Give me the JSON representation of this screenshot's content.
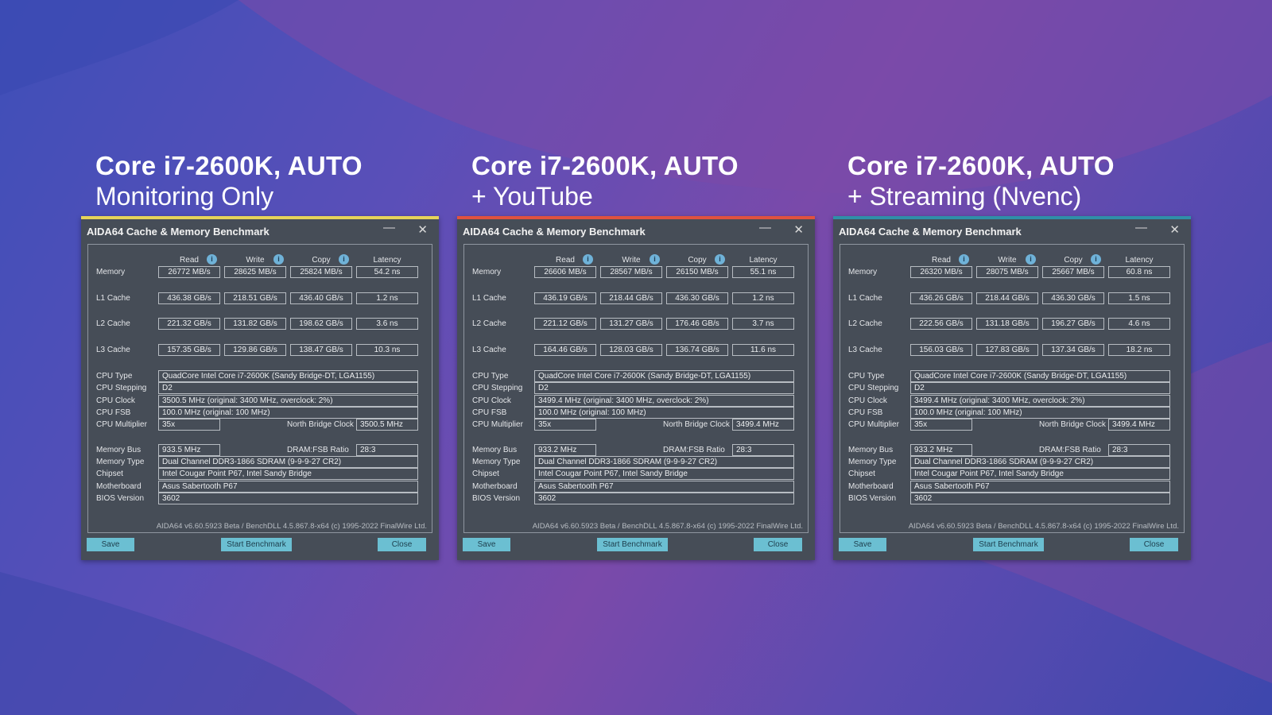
{
  "colors": {
    "accent_1": "#e6d35a",
    "accent_2": "#e0523f",
    "accent_3": "#2f8fa8"
  },
  "panels": [
    {
      "heading": "Core i7-2600K, AUTO",
      "subheading": "Monitoring Only",
      "window_title": "AIDA64 Cache & Memory Benchmark",
      "col_read": "Read",
      "col_write": "Write",
      "col_copy": "Copy",
      "col_latency": "Latency",
      "row_memory": "Memory",
      "row_l1": "L1 Cache",
      "row_l2": "L2 Cache",
      "row_l3": "L3 Cache",
      "memory": [
        "26772 MB/s",
        "28625 MB/s",
        "25824 MB/s",
        "54.2 ns"
      ],
      "l1": [
        "436.38 GB/s",
        "218.51 GB/s",
        "436.40 GB/s",
        "1.2 ns"
      ],
      "l2": [
        "221.32 GB/s",
        "131.82 GB/s",
        "198.62 GB/s",
        "3.6 ns"
      ],
      "l3": [
        "157.35 GB/s",
        "129.86 GB/s",
        "138.47 GB/s",
        "10.3 ns"
      ],
      "lbl_cpu_type": "CPU Type",
      "cpu_type": "QuadCore Intel Core i7-2600K  (Sandy Bridge-DT, LGA1155)",
      "lbl_cpu_stepping": "CPU Stepping",
      "cpu_stepping": "D2",
      "lbl_cpu_clock": "CPU Clock",
      "cpu_clock": "3500.5 MHz  (original: 3400 MHz, overclock: 2%)",
      "lbl_cpu_fsb": "CPU FSB",
      "cpu_fsb": "100.0 MHz  (original: 100 MHz)",
      "lbl_cpu_multiplier": "CPU Multiplier",
      "cpu_multiplier": "35x",
      "lbl_nb_clock": "North Bridge Clock",
      "nb_clock": "3500.5 MHz",
      "lbl_memory_bus": "Memory Bus",
      "memory_bus": "933.5 MHz",
      "lbl_dram_ratio": "DRAM:FSB Ratio",
      "dram_ratio": "28:3",
      "lbl_memory_type": "Memory Type",
      "memory_type": "Dual Channel DDR3-1866 SDRAM  (9-9-9-27 CR2)",
      "lbl_chipset": "Chipset",
      "chipset": "Intel Cougar Point P67, Intel Sandy Bridge",
      "lbl_motherboard": "Motherboard",
      "motherboard": "Asus Sabertooth P67",
      "lbl_bios": "BIOS Version",
      "bios": "3602",
      "footer": "AIDA64 v6.60.5923 Beta / BenchDLL 4.5.867.8-x64  (c) 1995-2022 FinalWire Ltd.",
      "btn_save": "Save",
      "btn_start": "Start Benchmark",
      "btn_close": "Close"
    },
    {
      "heading": "Core i7-2600K, AUTO",
      "subheading": "+ YouTube",
      "window_title": "AIDA64 Cache & Memory Benchmark",
      "col_read": "Read",
      "col_write": "Write",
      "col_copy": "Copy",
      "col_latency": "Latency",
      "row_memory": "Memory",
      "row_l1": "L1 Cache",
      "row_l2": "L2 Cache",
      "row_l3": "L3 Cache",
      "memory": [
        "26606 MB/s",
        "28567 MB/s",
        "26150 MB/s",
        "55.1 ns"
      ],
      "l1": [
        "436.19 GB/s",
        "218.44 GB/s",
        "436.30 GB/s",
        "1.2 ns"
      ],
      "l2": [
        "221.12 GB/s",
        "131.27 GB/s",
        "176.46 GB/s",
        "3.7 ns"
      ],
      "l3": [
        "164.46 GB/s",
        "128.03 GB/s",
        "136.74 GB/s",
        "11.6 ns"
      ],
      "lbl_cpu_type": "CPU Type",
      "cpu_type": "QuadCore Intel Core i7-2600K  (Sandy Bridge-DT, LGA1155)",
      "lbl_cpu_stepping": "CPU Stepping",
      "cpu_stepping": "D2",
      "lbl_cpu_clock": "CPU Clock",
      "cpu_clock": "3499.4 MHz  (original: 3400 MHz, overclock: 2%)",
      "lbl_cpu_fsb": "CPU FSB",
      "cpu_fsb": "100.0 MHz  (original: 100 MHz)",
      "lbl_cpu_multiplier": "CPU Multiplier",
      "cpu_multiplier": "35x",
      "lbl_nb_clock": "North Bridge Clock",
      "nb_clock": "3499.4 MHz",
      "lbl_memory_bus": "Memory Bus",
      "memory_bus": "933.2 MHz",
      "lbl_dram_ratio": "DRAM:FSB Ratio",
      "dram_ratio": "28:3",
      "lbl_memory_type": "Memory Type",
      "memory_type": "Dual Channel DDR3-1866 SDRAM  (9-9-9-27 CR2)",
      "lbl_chipset": "Chipset",
      "chipset": "Intel Cougar Point P67, Intel Sandy Bridge",
      "lbl_motherboard": "Motherboard",
      "motherboard": "Asus Sabertooth P67",
      "lbl_bios": "BIOS Version",
      "bios": "3602",
      "footer": "AIDA64 v6.60.5923 Beta / BenchDLL 4.5.867.8-x64  (c) 1995-2022 FinalWire Ltd.",
      "btn_save": "Save",
      "btn_start": "Start Benchmark",
      "btn_close": "Close"
    },
    {
      "heading": "Core i7-2600K, AUTO",
      "subheading": "+ Streaming (Nvenc)",
      "window_title": "AIDA64 Cache & Memory Benchmark",
      "col_read": "Read",
      "col_write": "Write",
      "col_copy": "Copy",
      "col_latency": "Latency",
      "row_memory": "Memory",
      "row_l1": "L1 Cache",
      "row_l2": "L2 Cache",
      "row_l3": "L3 Cache",
      "memory": [
        "26320 MB/s",
        "28075 MB/s",
        "25667 MB/s",
        "60.8 ns"
      ],
      "l1": [
        "436.26 GB/s",
        "218.44 GB/s",
        "436.30 GB/s",
        "1.5 ns"
      ],
      "l2": [
        "222.56 GB/s",
        "131.18 GB/s",
        "196.27 GB/s",
        "4.6 ns"
      ],
      "l3": [
        "156.03 GB/s",
        "127.83 GB/s",
        "137.34 GB/s",
        "18.2 ns"
      ],
      "lbl_cpu_type": "CPU Type",
      "cpu_type": "QuadCore Intel Core i7-2600K  (Sandy Bridge-DT, LGA1155)",
      "lbl_cpu_stepping": "CPU Stepping",
      "cpu_stepping": "D2",
      "lbl_cpu_clock": "CPU Clock",
      "cpu_clock": "3499.4 MHz  (original: 3400 MHz, overclock: 2%)",
      "lbl_cpu_fsb": "CPU FSB",
      "cpu_fsb": "100.0 MHz  (original: 100 MHz)",
      "lbl_cpu_multiplier": "CPU Multiplier",
      "cpu_multiplier": "35x",
      "lbl_nb_clock": "North Bridge Clock",
      "nb_clock": "3499.4 MHz",
      "lbl_memory_bus": "Memory Bus",
      "memory_bus": "933.2 MHz",
      "lbl_dram_ratio": "DRAM:FSB Ratio",
      "dram_ratio": "28:3",
      "lbl_memory_type": "Memory Type",
      "memory_type": "Dual Channel DDR3-1866 SDRAM  (9-9-9-27 CR2)",
      "lbl_chipset": "Chipset",
      "chipset": "Intel Cougar Point P67, Intel Sandy Bridge",
      "lbl_motherboard": "Motherboard",
      "motherboard": "Asus Sabertooth P67",
      "lbl_bios": "BIOS Version",
      "bios": "3602",
      "footer": "AIDA64 v6.60.5923 Beta / BenchDLL 4.5.867.8-x64  (c) 1995-2022 FinalWire Ltd.",
      "btn_save": "Save",
      "btn_start": "Start Benchmark",
      "btn_close": "Close"
    }
  ]
}
